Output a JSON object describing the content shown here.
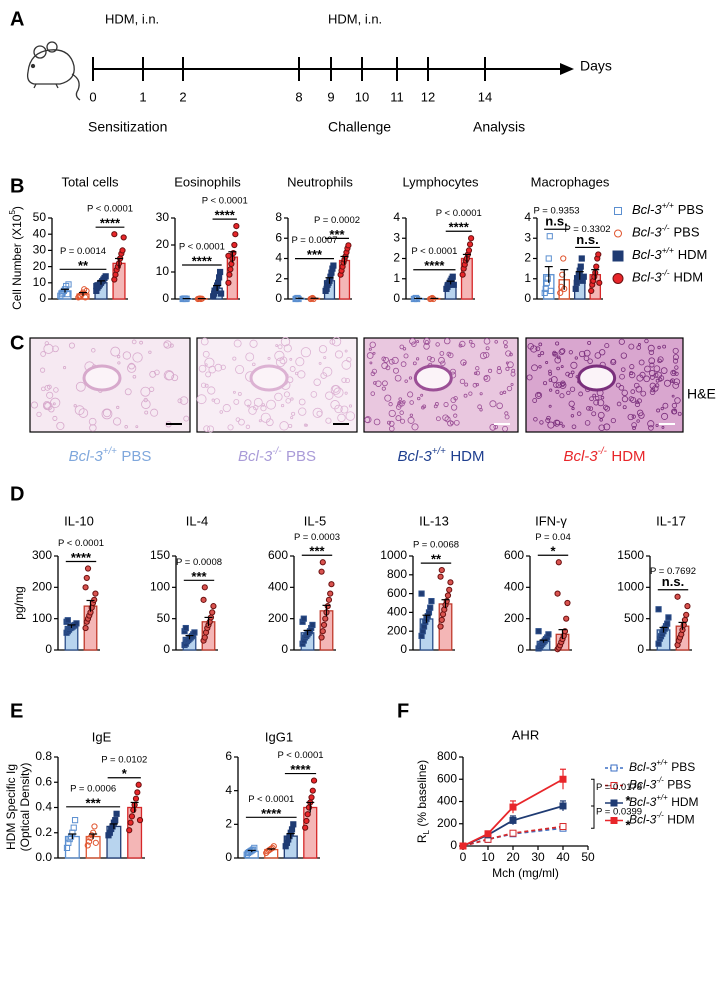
{
  "panel_labels": [
    "A",
    "B",
    "C",
    "D",
    "E",
    "F"
  ],
  "timeline": {
    "events": [
      "HDM, i.n.",
      "HDM, i.n."
    ],
    "days": [
      0,
      1,
      2,
      8,
      9,
      10,
      11,
      12,
      14
    ],
    "unit": "Days",
    "phases": [
      "Sensitization",
      "Challenge",
      "Analysis"
    ]
  },
  "legend_b": [
    {
      "gene": "Bcl-3",
      "genotype": "+/+",
      "treatment": "PBS"
    },
    {
      "gene": "Bcl-3",
      "genotype": "-/-",
      "treatment": "PBS"
    },
    {
      "gene": "Bcl-3",
      "genotype": "+/+",
      "treatment": "HDM"
    },
    {
      "gene": "Bcl-3",
      "genotype": "-/-",
      "treatment": "HDM"
    }
  ],
  "histology": {
    "stain": "H&E",
    "captions": [
      {
        "gene": "Bcl-3",
        "genotype": "+/+",
        "treatment": "PBS",
        "color": "#7fa7dc"
      },
      {
        "gene": "Bcl-3",
        "genotype": "-/-",
        "treatment": "PBS",
        "color": "#a99bd8"
      },
      {
        "gene": "Bcl-3",
        "genotype": "+/+",
        "treatment": "HDM",
        "color": "#1f3f8f"
      },
      {
        "gene": "Bcl-3",
        "genotype": "-/-",
        "treatment": "HDM",
        "color": "#e8262a"
      }
    ]
  },
  "chart_data": [
    {
      "type": "bar",
      "title": "Total cells",
      "ylabel": [
        "Cell Number (X10",
        "5",
        ")"
      ],
      "ylim": [
        0,
        50
      ],
      "yticks": [
        0,
        10,
        20,
        30,
        40,
        50
      ],
      "groups": [
        {
          "mean": 5,
          "sem": 1,
          "points": [
            2,
            3,
            4,
            5,
            6,
            8,
            3,
            9
          ]
        },
        {
          "mean": 3,
          "sem": 1,
          "points": [
            1,
            2,
            2,
            3,
            4,
            6,
            1,
            5
          ]
        },
        {
          "mean": 10,
          "sem": 1.2,
          "points": [
            5,
            7,
            8,
            9,
            10,
            11,
            12,
            13,
            14,
            8
          ]
        },
        {
          "mean": 22,
          "sem": 3,
          "points": [
            12,
            15,
            18,
            20,
            22,
            25,
            28,
            30,
            38,
            40
          ]
        }
      ],
      "comparisons": [
        {
          "groups": [
            0,
            2
          ],
          "p": "P = 0.0014",
          "sig": "**"
        },
        {
          "groups": [
            2,
            3
          ],
          "p": "P < 0.0001",
          "sig": "****"
        }
      ]
    },
    {
      "type": "bar",
      "title": "Eosinophils",
      "ylim": [
        0,
        30
      ],
      "yticks": [
        0,
        10,
        20,
        30
      ],
      "groups": [
        {
          "mean": 0.1,
          "sem": 0.05,
          "points": [
            0,
            0.1,
            0.2,
            0,
            0.1
          ]
        },
        {
          "mean": 0.1,
          "sem": 0.05,
          "points": [
            0,
            0.1,
            0.2,
            0,
            0.1
          ]
        },
        {
          "mean": 4,
          "sem": 1,
          "points": [
            1,
            2,
            3,
            4,
            5,
            6,
            8,
            10,
            2
          ]
        },
        {
          "mean": 15.5,
          "sem": 2,
          "points": [
            6,
            9,
            11,
            13,
            15,
            17,
            20,
            24,
            27,
            16
          ]
        }
      ],
      "comparisons": [
        {
          "groups": [
            0,
            2
          ],
          "p": "P < 0.0001",
          "sig": "****"
        },
        {
          "groups": [
            2,
            3
          ],
          "p": "P < 0.0001",
          "sig": "****"
        }
      ]
    },
    {
      "type": "bar",
      "title": "Neutrophils",
      "ylim": [
        0,
        8
      ],
      "yticks": [
        0,
        2,
        4,
        6,
        8
      ],
      "groups": [
        {
          "mean": 0.05,
          "sem": 0.02,
          "points": [
            0,
            0.05,
            0.1,
            0
          ]
        },
        {
          "mean": 0.05,
          "sem": 0.02,
          "points": [
            0,
            0.05,
            0.1,
            0
          ]
        },
        {
          "mean": 1.8,
          "sem": 0.3,
          "points": [
            0.8,
            1,
            1.4,
            1.6,
            1.8,
            2.2,
            2.6,
            3,
            3.3
          ]
        },
        {
          "mean": 3.8,
          "sem": 0.4,
          "points": [
            2.4,
            2.8,
            3.2,
            3.6,
            3.9,
            4.2,
            4.6,
            5,
            5.3
          ]
        }
      ],
      "comparisons": [
        {
          "groups": [
            0,
            2
          ],
          "p": "P = 0.0007",
          "sig": "***"
        },
        {
          "groups": [
            2,
            3
          ],
          "p": "P = 0.0002",
          "sig": "***"
        }
      ]
    },
    {
      "type": "bar",
      "title": "Lymphocytes",
      "ylim": [
        0,
        4
      ],
      "yticks": [
        0,
        1,
        2,
        3,
        4
      ],
      "groups": [
        {
          "mean": 0.02,
          "sem": 0.01,
          "points": [
            0,
            0.02,
            0.05,
            0
          ]
        },
        {
          "mean": 0.02,
          "sem": 0.01,
          "points": [
            0,
            0.02,
            0.05,
            0
          ]
        },
        {
          "mean": 0.8,
          "sem": 0.08,
          "points": [
            0.5,
            0.6,
            0.7,
            0.8,
            0.9,
            1,
            1.1,
            0.7
          ]
        },
        {
          "mean": 2,
          "sem": 0.2,
          "points": [
            1.2,
            1.5,
            1.7,
            1.9,
            2,
            2.2,
            2.4,
            2.7,
            3
          ]
        }
      ],
      "comparisons": [
        {
          "groups": [
            0,
            2
          ],
          "p": "P < 0.0001",
          "sig": "****"
        },
        {
          "groups": [
            2,
            3
          ],
          "p": "P < 0.0001",
          "sig": "****"
        }
      ]
    },
    {
      "type": "bar",
      "title": "Macrophages",
      "ylim": [
        0,
        4
      ],
      "yticks": [
        0,
        1,
        2,
        3,
        4
      ],
      "groups": [
        {
          "mean": 1.2,
          "sem": 0.4,
          "points": [
            0.3,
            0.5,
            0.8,
            1,
            2,
            3.1,
            0.4
          ]
        },
        {
          "mean": 0.95,
          "sem": 0.5,
          "points": [
            0.3,
            0.6,
            1.2,
            2,
            0.5
          ]
        },
        {
          "mean": 1.15,
          "sem": 0.2,
          "points": [
            0.5,
            0.8,
            1,
            1.2,
            1.4,
            1.6,
            2,
            0.9,
            1.1
          ]
        },
        {
          "mean": 1.2,
          "sem": 0.25,
          "points": [
            0.4,
            0.7,
            0.9,
            1.1,
            1.3,
            1.6,
            2,
            2.2,
            0.8
          ]
        }
      ],
      "comparisons": [
        {
          "groups": [
            0,
            1
          ],
          "p": "P = 0.9353",
          "sig": "n.s."
        },
        {
          "groups": [
            2,
            3
          ],
          "p": "P = 0.3302",
          "sig": "n.s."
        }
      ]
    },
    {
      "type": "bar",
      "title": "IL-10",
      "ylabel": [
        "pg/mg"
      ],
      "ylim": [
        0,
        300
      ],
      "yticks": [
        0,
        100,
        200,
        300
      ],
      "groups": [
        {
          "mean": 75,
          "sem": 5,
          "points": [
            55,
            60,
            65,
            70,
            72,
            75,
            78,
            80,
            85,
            90,
            95
          ]
        },
        {
          "mean": 140,
          "sem": 18,
          "points": [
            70,
            90,
            100,
            110,
            120,
            135,
            150,
            160,
            180,
            200,
            230,
            260
          ]
        }
      ],
      "comparisons": [
        {
          "groups": [
            0,
            1
          ],
          "p": "P < 0.0001",
          "sig": "****"
        }
      ]
    },
    {
      "type": "bar",
      "title": "IL-4",
      "ylim": [
        0,
        150
      ],
      "yticks": [
        0,
        50,
        100,
        150
      ],
      "groups": [
        {
          "mean": 20,
          "sem": 3,
          "points": [
            8,
            10,
            14,
            16,
            18,
            20,
            22,
            25,
            28,
            30,
            35
          ]
        },
        {
          "mean": 45,
          "sem": 7,
          "points": [
            15,
            20,
            28,
            35,
            40,
            45,
            52,
            60,
            70,
            80,
            100
          ]
        }
      ],
      "comparisons": [
        {
          "groups": [
            0,
            1
          ],
          "p": "P = 0.0008",
          "sig": "***"
        }
      ]
    },
    {
      "type": "bar",
      "title": "IL-5",
      "ylim": [
        0,
        600
      ],
      "yticks": [
        0,
        200,
        400,
        600
      ],
      "groups": [
        {
          "mean": 110,
          "sem": 15,
          "points": [
            40,
            60,
            80,
            90,
            100,
            110,
            120,
            140,
            160,
            180,
            200
          ]
        },
        {
          "mean": 250,
          "sem": 35,
          "points": [
            80,
            120,
            160,
            200,
            240,
            280,
            320,
            360,
            420,
            500,
            560
          ]
        }
      ],
      "comparisons": [
        {
          "groups": [
            0,
            1
          ],
          "p": "P = 0.0003",
          "sig": "***"
        }
      ]
    },
    {
      "type": "bar",
      "title": "IL-13",
      "ylim": [
        0,
        1000
      ],
      "yticks": [
        0,
        200,
        400,
        600,
        800,
        1000
      ],
      "groups": [
        {
          "mean": 330,
          "sem": 40,
          "points": [
            150,
            200,
            250,
            300,
            330,
            360,
            400,
            450,
            520,
            600
          ]
        },
        {
          "mean": 490,
          "sem": 45,
          "points": [
            250,
            320,
            380,
            430,
            480,
            520,
            580,
            640,
            720,
            780,
            850
          ]
        }
      ],
      "comparisons": [
        {
          "groups": [
            0,
            1
          ],
          "p": "P = 0.0068",
          "sig": "**"
        }
      ]
    },
    {
      "type": "bar",
      "title": "IFN-γ",
      "ylim": [
        0,
        600
      ],
      "yticks": [
        0,
        200,
        400,
        600
      ],
      "groups": [
        {
          "mean": 55,
          "sem": 8,
          "points": [
            10,
            20,
            30,
            40,
            50,
            60,
            70,
            80,
            100,
            120
          ]
        },
        {
          "mean": 100,
          "sem": 30,
          "points": [
            5,
            15,
            30,
            50,
            70,
            90,
            120,
            200,
            300,
            360,
            560
          ]
        }
      ],
      "comparisons": [
        {
          "groups": [
            0,
            1
          ],
          "p": "P = 0.04",
          "sig": "*"
        }
      ]
    },
    {
      "type": "bar",
      "title": "IL-17",
      "ylim": [
        0,
        1500
      ],
      "yticks": [
        0,
        500,
        1000,
        1500
      ],
      "groups": [
        {
          "mean": 320,
          "sem": 40,
          "points": [
            100,
            180,
            220,
            260,
            300,
            340,
            380,
            420,
            520,
            650
          ]
        },
        {
          "mean": 380,
          "sem": 60,
          "points": [
            80,
            150,
            200,
            250,
            320,
            400,
            480,
            560,
            700,
            850
          ]
        }
      ],
      "comparisons": [
        {
          "groups": [
            0,
            1
          ],
          "p": "P = 0.7692",
          "sig": "n.s."
        }
      ]
    },
    {
      "type": "bar",
      "title": "IgE",
      "ylabel": [
        "HDM Specific Ig",
        "(Optical Density)"
      ],
      "ylim": [
        0,
        0.8
      ],
      "yticks": [
        {
          "value": 0,
          "label": "0.0"
        },
        0.2,
        0.4,
        0.6,
        0.8
      ],
      "groups": [
        {
          "mean": 0.17,
          "sem": 0.02,
          "points": [
            0.08,
            0.12,
            0.15,
            0.17,
            0.2,
            0.24,
            0.3
          ]
        },
        {
          "mean": 0.17,
          "sem": 0.02,
          "points": [
            0.1,
            0.13,
            0.16,
            0.18,
            0.2,
            0.25,
            0.12
          ]
        },
        {
          "mean": 0.25,
          "sem": 0.02,
          "points": [
            0.18,
            0.2,
            0.23,
            0.25,
            0.28,
            0.3,
            0.35
          ]
        },
        {
          "mean": 0.4,
          "sem": 0.04,
          "points": [
            0.22,
            0.28,
            0.33,
            0.38,
            0.42,
            0.47,
            0.52,
            0.58,
            0.3
          ]
        }
      ],
      "comparisons": [
        {
          "groups": [
            0,
            2
          ],
          "p": "P = 0.0006",
          "sig": "***"
        },
        {
          "groups": [
            2,
            3
          ],
          "p": "P = 0.0102",
          "sig": "*"
        }
      ]
    },
    {
      "type": "bar",
      "title": "IgG1",
      "ylim": [
        0,
        6
      ],
      "yticks": [
        0,
        2,
        4,
        6
      ],
      "groups": [
        {
          "mean": 0.4,
          "sem": 0.05,
          "points": [
            0.2,
            0.3,
            0.35,
            0.4,
            0.45,
            0.5,
            0.6
          ]
        },
        {
          "mean": 0.5,
          "sem": 0.04,
          "points": [
            0.3,
            0.4,
            0.45,
            0.5,
            0.55,
            0.6,
            0.7
          ]
        },
        {
          "mean": 1.3,
          "sem": 0.15,
          "points": [
            0.7,
            0.9,
            1.1,
            1.3,
            1.5,
            1.7,
            2
          ]
        },
        {
          "mean": 3,
          "sem": 0.3,
          "points": [
            1.8,
            2.2,
            2.6,
            3,
            3.3,
            3.6,
            4,
            4.6
          ]
        }
      ],
      "comparisons": [
        {
          "groups": [
            0,
            2
          ],
          "p": "P < 0.0001",
          "sig": "****"
        },
        {
          "groups": [
            2,
            3
          ],
          "p": "P < 0.0001",
          "sig": "****"
        }
      ]
    },
    {
      "type": "line",
      "title": "AHR",
      "ylabel": [
        "R",
        "L",
        " (% baseline)"
      ],
      "xlabel": "Mch (mg/ml)",
      "x": [
        0,
        10,
        20,
        40
      ],
      "xlim": [
        0,
        50
      ],
      "xticks": [
        0,
        10,
        20,
        30,
        40,
        50
      ],
      "ylim": [
        0,
        800
      ],
      "yticks": [
        0,
        200,
        400,
        600,
        800
      ],
      "series": [
        {
          "gene": "Bcl-3",
          "genotype": "+/+",
          "treatment": "PBS",
          "color": "#3b6fc4",
          "dashed": true,
          "filled": false,
          "values": [
            0,
            60,
            110,
            160
          ],
          "errors": [
            0,
            8,
            15,
            20
          ]
        },
        {
          "gene": "Bcl-3",
          "genotype": "-/-",
          "treatment": "PBS",
          "color": "#d62728",
          "dashed": true,
          "filled": false,
          "values": [
            0,
            60,
            115,
            175
          ],
          "errors": [
            0,
            8,
            15,
            20
          ]
        },
        {
          "gene": "Bcl-3",
          "genotype": "+/+",
          "treatment": "HDM",
          "color": "#1f3b73",
          "dashed": false,
          "filled": true,
          "values": [
            0,
            100,
            230,
            360
          ],
          "errors": [
            0,
            15,
            40,
            45
          ]
        },
        {
          "gene": "Bcl-3",
          "genotype": "-/-",
          "treatment": "HDM",
          "color": "#e8262a",
          "dashed": false,
          "filled": true,
          "values": [
            0,
            110,
            350,
            600
          ],
          "errors": [
            0,
            20,
            55,
            90
          ]
        }
      ],
      "comparisons": [
        {
          "series": [
            3,
            2
          ],
          "p": "P = 0.0178",
          "sig": "*"
        },
        {
          "series": [
            2,
            0
          ],
          "p": "P = 0.0399",
          "sig": "*"
        }
      ]
    }
  ]
}
